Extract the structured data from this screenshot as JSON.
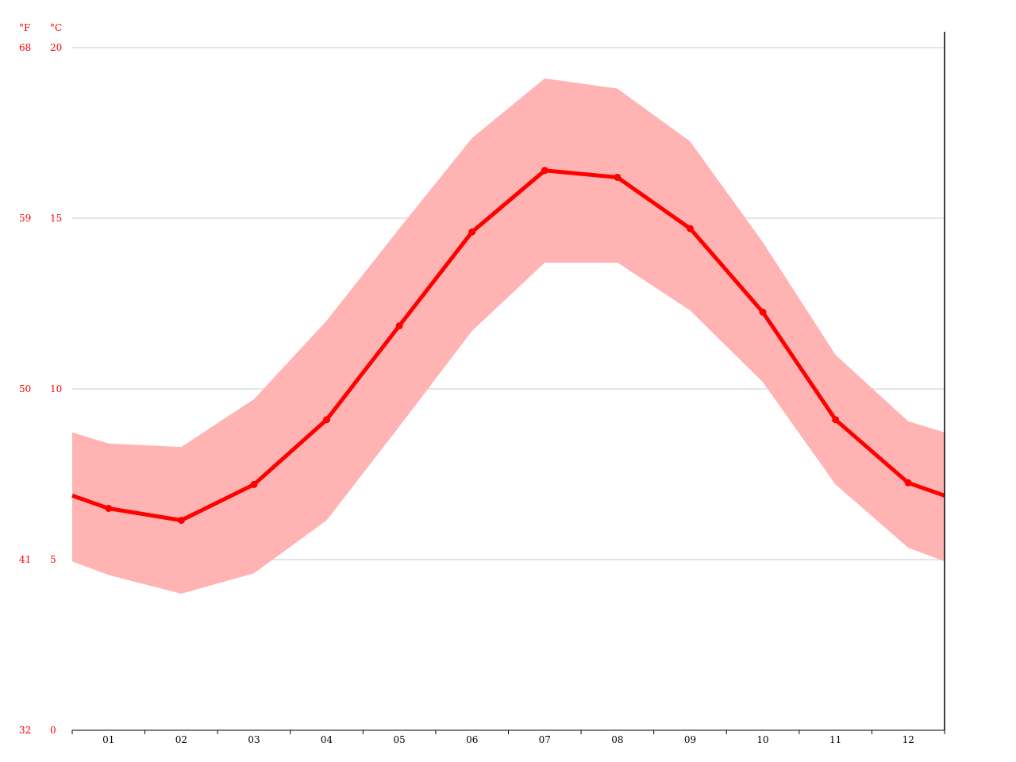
{
  "chart_data": {
    "type": "line",
    "categories": [
      "01",
      "02",
      "03",
      "04",
      "05",
      "06",
      "07",
      "08",
      "09",
      "10",
      "11",
      "12"
    ],
    "series": [
      {
        "role": "mean",
        "values": [
          6.5,
          6.15,
          7.2,
          9.1,
          11.85,
          14.6,
          16.4,
          16.2,
          14.7,
          12.25,
          9.1,
          7.25
        ]
      },
      {
        "role": "max",
        "values": [
          8.4,
          8.3,
          9.7,
          12.0,
          14.7,
          17.35,
          19.1,
          18.8,
          17.25,
          14.3,
          11.0,
          9.05
        ]
      },
      {
        "role": "min",
        "values": [
          4.55,
          4.0,
          4.6,
          6.15,
          8.9,
          11.7,
          13.7,
          13.7,
          12.3,
          10.2,
          7.2,
          5.35
        ]
      }
    ],
    "y_left_unit": "°F",
    "y_right_unit": "°C",
    "y_ticks_c": [
      0,
      5,
      10,
      15,
      20
    ],
    "y_ticks_f": [
      32,
      41,
      50,
      59,
      68
    ],
    "ylim": [
      0,
      20
    ],
    "grid": true,
    "colors": {
      "line": "#ff0000",
      "band": "#ffb3b3",
      "grid": "#c8c8c8",
      "temp_labels": "#ff0000",
      "axis": "#000000"
    }
  }
}
